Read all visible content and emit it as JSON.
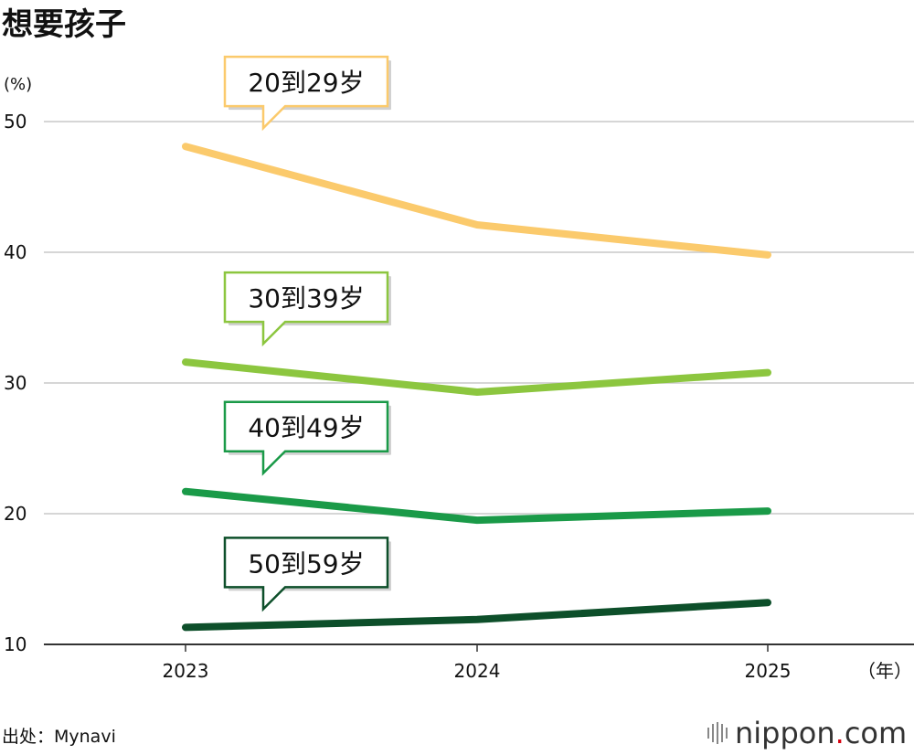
{
  "chart_data": {
    "type": "line",
    "title": "想要孩子",
    "ylabel": "(%)",
    "xlabel": "（年）",
    "x": [
      "2023",
      "2024",
      "2025"
    ],
    "ylim": [
      10,
      50
    ],
    "yticks": [
      10,
      20,
      30,
      40,
      50
    ],
    "grid": true,
    "series": [
      {
        "name": "20到29岁",
        "values": [
          48.1,
          42.1,
          39.8
        ],
        "color": "#fbca6c"
      },
      {
        "name": "30到39岁",
        "values": [
          31.6,
          29.3,
          30.8
        ],
        "color": "#8cc63f"
      },
      {
        "name": "40到49岁",
        "values": [
          21.7,
          19.5,
          20.2
        ],
        "color": "#1a9a48"
      },
      {
        "name": "50到59岁",
        "values": [
          11.3,
          11.9,
          13.2
        ],
        "color": "#0d4f2a"
      }
    ]
  },
  "footer": {
    "source": "出处：Mynavi",
    "brand_name": "nippon",
    "brand_dot": ".",
    "brand_tld": "com"
  }
}
